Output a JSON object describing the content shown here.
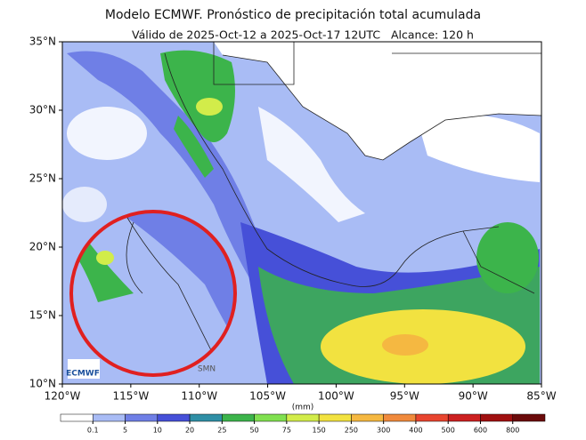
{
  "chart_data": {
    "type": "map",
    "title": "Modelo ECMWF. Pronóstico de precipitación total acumulada",
    "subtitle": "Válido de 2025-Oct-12 a 2025-Oct-17 12UTC   Alcance: 120 h",
    "xlim": [
      -120,
      -85
    ],
    "ylim": [
      10,
      35
    ],
    "xticks": [
      {
        "value": -120,
        "label": "120°W"
      },
      {
        "value": -115,
        "label": "115°W"
      },
      {
        "value": -110,
        "label": "110°W"
      },
      {
        "value": -105,
        "label": "105°W"
      },
      {
        "value": -100,
        "label": "100°W"
      },
      {
        "value": -95,
        "label": "95°W"
      },
      {
        "value": -90,
        "label": "90°W"
      },
      {
        "value": -85,
        "label": "85°W"
      }
    ],
    "yticks": [
      {
        "value": 10,
        "label": "10°N"
      },
      {
        "value": 15,
        "label": "15°N"
      },
      {
        "value": 20,
        "label": "20°N"
      },
      {
        "value": 25,
        "label": "25°N"
      },
      {
        "value": 30,
        "label": "30°N"
      },
      {
        "value": 35,
        "label": "35°N"
      }
    ],
    "colorbar": {
      "label": "(mm)",
      "bounds": [
        0.1,
        5,
        10,
        20,
        25,
        50,
        75,
        150,
        250,
        300,
        400,
        500,
        600,
        800
      ],
      "colors": [
        "#ffffff",
        "#a9bcf5",
        "#6f7fe6",
        "#4650d8",
        "#2f8fa6",
        "#3cb44b",
        "#80e050",
        "#d2ec4a",
        "#f2e240",
        "#f5b841",
        "#f08a3c",
        "#e8452f",
        "#cc2020",
        "#a01010",
        "#6b0b0b"
      ]
    }
  },
  "logos": [
    "ECMWF",
    "SMN"
  ]
}
